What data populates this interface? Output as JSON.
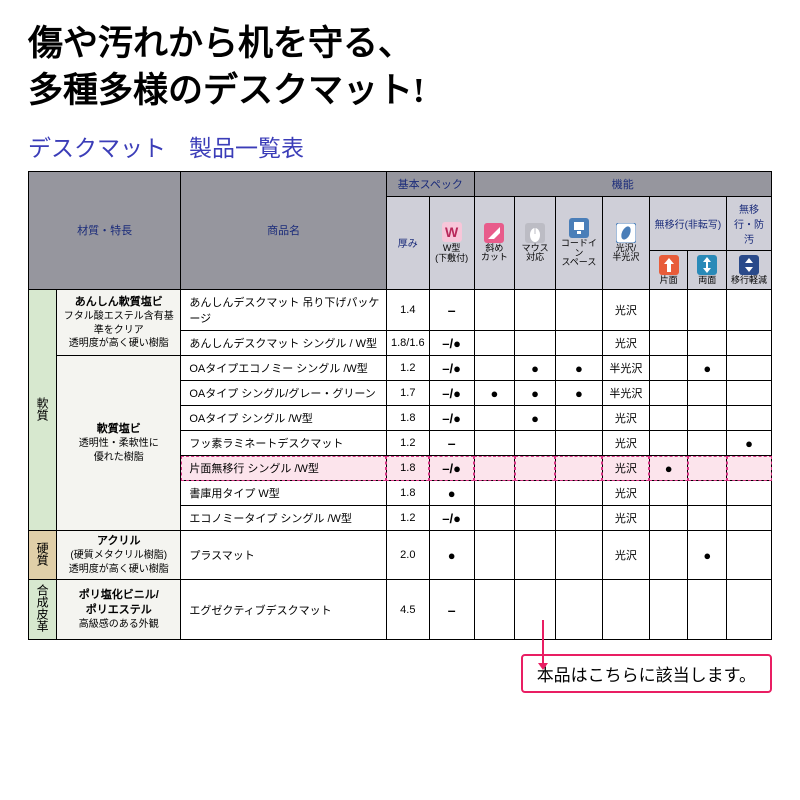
{
  "headline_l1": "傷や汚れから机を守る、",
  "headline_l2": "多種多様のデスクマット!",
  "subtitle": "デスクマット　製品一覧表",
  "headers": {
    "material": "材質・特長",
    "product": "商品名",
    "basic_spec": "基本スペック",
    "thickness": "厚み",
    "function": "機能",
    "nomigrate": "無移行(非転写)",
    "nomigrate_anti": "無移行・防汚",
    "icons": {
      "w": {
        "label": "W型\n(下敷付)",
        "bg": "#f7c6d9",
        "fg": "#b8285a"
      },
      "diag": {
        "label": "斜め\nカット",
        "bg": "#e85c8b",
        "fg": "#ffffff"
      },
      "mouse": {
        "label": "マウス\n対応",
        "bg": "#bcbcc4",
        "fg": "#ffffff"
      },
      "cord": {
        "label": "コードイン\nスペース",
        "bg": "#4a7eb8",
        "fg": "#ffffff"
      },
      "gloss": {
        "label": "光沢/\n半光沢",
        "bg": "#ffffff",
        "fg": "#4a7eb8"
      },
      "single": {
        "label": "片面",
        "bg": "#e85c3a",
        "fg": "#ffffff"
      },
      "double": {
        "label": "両面",
        "bg": "#2a8ab8",
        "fg": "#ffffff"
      },
      "reduce": {
        "label": "移行軽減",
        "bg": "#2a4a8a",
        "fg": "#ffffff"
      }
    }
  },
  "categories": [
    {
      "name": "軟質",
      "class": "catcell",
      "rowspan": 9
    },
    {
      "name": "硬質",
      "class": "catcell cat-hard",
      "rowspan": 1
    },
    {
      "name": "合成皮革",
      "class": "catcell cat-leather",
      "rowspan": 1
    }
  ],
  "materials": [
    {
      "title": "あんしん軟質塩ビ",
      "sub": "フタル酸エステル含有基準をクリア\n透明度が高く硬い樹脂",
      "rowspan": 2
    },
    {
      "title": "軟質塩ビ",
      "sub": "透明性・柔軟性に\n優れた樹脂",
      "rowspan": 7
    },
    {
      "title": "アクリル",
      "sub": "(硬質メタクリル樹脂)\n透明度が高く硬い樹脂",
      "rowspan": 1
    },
    {
      "title": "ポリ塩化ビニル/\nポリエステル",
      "sub": "高級感のある外観",
      "rowspan": 1
    }
  ],
  "rows": [
    {
      "prod": "あんしんデスクマット 吊り下げパッケージ",
      "thick": "1.4",
      "w": "-",
      "diag": "",
      "mouse": "",
      "cord": "",
      "gloss": "光沢",
      "single": "",
      "double": "",
      "reduce": "",
      "hl": false
    },
    {
      "prod": "あんしんデスクマット シングル / W型",
      "thick": "1.8/1.6",
      "w": "-/●",
      "diag": "",
      "mouse": "",
      "cord": "",
      "gloss": "光沢",
      "single": "",
      "double": "",
      "reduce": "",
      "hl": false
    },
    {
      "prod": "OAタイプエコノミー シングル /W型",
      "thick": "1.2",
      "w": "-/●",
      "diag": "",
      "mouse": "●",
      "cord": "●",
      "gloss": "半光沢",
      "single": "",
      "double": "●",
      "reduce": "",
      "hl": false
    },
    {
      "prod": "OAタイプ シングル/グレー・グリーン",
      "thick": "1.7",
      "w": "-/●",
      "diag": "●",
      "mouse": "●",
      "cord": "●",
      "gloss": "半光沢",
      "single": "",
      "double": "",
      "reduce": "",
      "hl": false
    },
    {
      "prod": "OAタイプ シングル /W型",
      "thick": "1.8",
      "w": "-/●",
      "diag": "",
      "mouse": "●",
      "cord": "",
      "gloss": "光沢",
      "single": "",
      "double": "",
      "reduce": "",
      "hl": false
    },
    {
      "prod": "フッ素ラミネートデスクマット",
      "thick": "1.2",
      "w": "-",
      "diag": "",
      "mouse": "",
      "cord": "",
      "gloss": "光沢",
      "single": "",
      "double": "",
      "reduce": "●",
      "hl": false
    },
    {
      "prod": "片面無移行 シングル /W型",
      "thick": "1.8",
      "w": "-/●",
      "diag": "",
      "mouse": "",
      "cord": "",
      "gloss": "光沢",
      "single": "●",
      "double": "",
      "reduce": "",
      "hl": true
    },
    {
      "prod": "書庫用タイプ W型",
      "thick": "1.8",
      "w": "●",
      "diag": "",
      "mouse": "",
      "cord": "",
      "gloss": "光沢",
      "single": "",
      "double": "",
      "reduce": "",
      "hl": false
    },
    {
      "prod": "エコノミータイプ シングル /W型",
      "thick": "1.2",
      "w": "-/●",
      "diag": "",
      "mouse": "",
      "cord": "",
      "gloss": "光沢",
      "single": "",
      "double": "",
      "reduce": "",
      "hl": false
    },
    {
      "prod": "プラスマット",
      "thick": "2.0",
      "w": "●",
      "diag": "",
      "mouse": "",
      "cord": "",
      "gloss": "光沢",
      "single": "",
      "double": "●",
      "reduce": "",
      "hl": false
    },
    {
      "prod": "エグゼクティブデスクマット",
      "thick": "4.5",
      "w": "-",
      "diag": "",
      "mouse": "",
      "cord": "",
      "gloss": "",
      "single": "",
      "double": "",
      "reduce": "",
      "hl": false
    }
  ],
  "callout": "本品はこちらに該当します。",
  "colors": {
    "header": "#96969e",
    "subheader": "#cfcfd8",
    "soft": "#d7e8cf",
    "hard": "#e0cfa8",
    "hl": "#fce4ec",
    "hl_border": "#d63384"
  }
}
